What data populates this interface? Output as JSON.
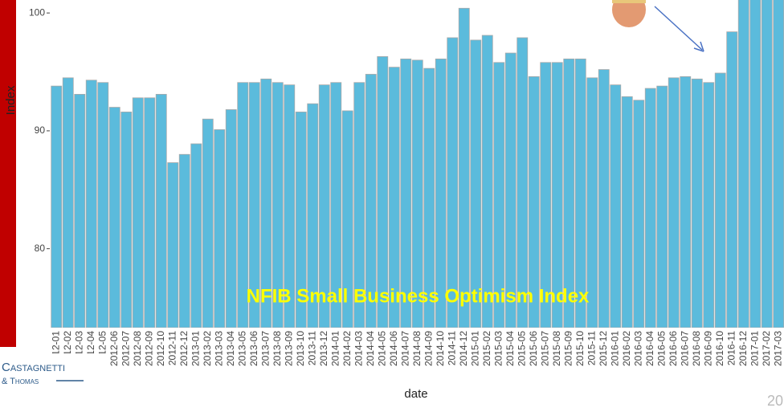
{
  "chart_data": {
    "type": "bar",
    "title": "NFIB Small Business Optimism Index",
    "x_label": "date",
    "y_label": "Index",
    "categories": [
      "2012-01",
      "2012-02",
      "2012-03",
      "2012-04",
      "2012-05",
      "2012-06",
      "2012-07",
      "2012-08",
      "2012-09",
      "2012-10",
      "2012-11",
      "2012-12",
      "2013-01",
      "2013-02",
      "2013-03",
      "2013-04",
      "2013-05",
      "2013-06",
      "2013-07",
      "2013-08",
      "2013-09",
      "2013-10",
      "2013-11",
      "2013-12",
      "2014-01",
      "2014-02",
      "2014-03",
      "2014-04",
      "2014-05",
      "2014-06",
      "2014-07",
      "2014-08",
      "2014-09",
      "2014-10",
      "2014-11",
      "2014-12",
      "2015-01",
      "2015-02",
      "2015-03",
      "2015-04",
      "2015-05",
      "2015-06",
      "2015-07",
      "2015-08",
      "2015-09",
      "2015-10",
      "2015-11",
      "2015-12",
      "2016-01",
      "2016-02",
      "2016-03",
      "2016-04",
      "2016-05",
      "2016-06",
      "2016-07",
      "2016-08",
      "2016-09",
      "2016-10",
      "2016-11",
      "2016-12",
      "2017-01",
      "2017-02",
      "2017-03"
    ],
    "values": [
      93.8,
      94.5,
      93.1,
      94.3,
      94.1,
      92.0,
      91.6,
      92.8,
      92.8,
      93.1,
      87.3,
      88.0,
      88.9,
      91.0,
      90.1,
      91.8,
      94.1,
      94.1,
      94.4,
      94.1,
      93.9,
      91.6,
      92.3,
      93.9,
      94.1,
      91.7,
      94.1,
      94.8,
      96.3,
      95.4,
      96.1,
      96.0,
      95.3,
      96.1,
      97.9,
      100.4,
      97.7,
      98.1,
      95.8,
      96.6,
      97.9,
      94.6,
      95.8,
      95.8,
      96.1,
      96.1,
      94.5,
      95.2,
      93.9,
      92.9,
      92.6,
      93.6,
      93.8,
      94.5,
      94.6,
      94.4,
      94.1,
      94.9,
      98.4,
      105.8,
      105.9,
      105.3,
      104.7
    ],
    "color": "#5bbbdc",
    "edge_color": "#a9a9a9",
    "ylim": [
      73.3,
      101.1
    ],
    "yticks": [
      80,
      90,
      100
    ],
    "grid": false
  },
  "logo": {
    "line1": "Castagnetti",
    "line2": "& Thomas"
  },
  "page_number": "20"
}
